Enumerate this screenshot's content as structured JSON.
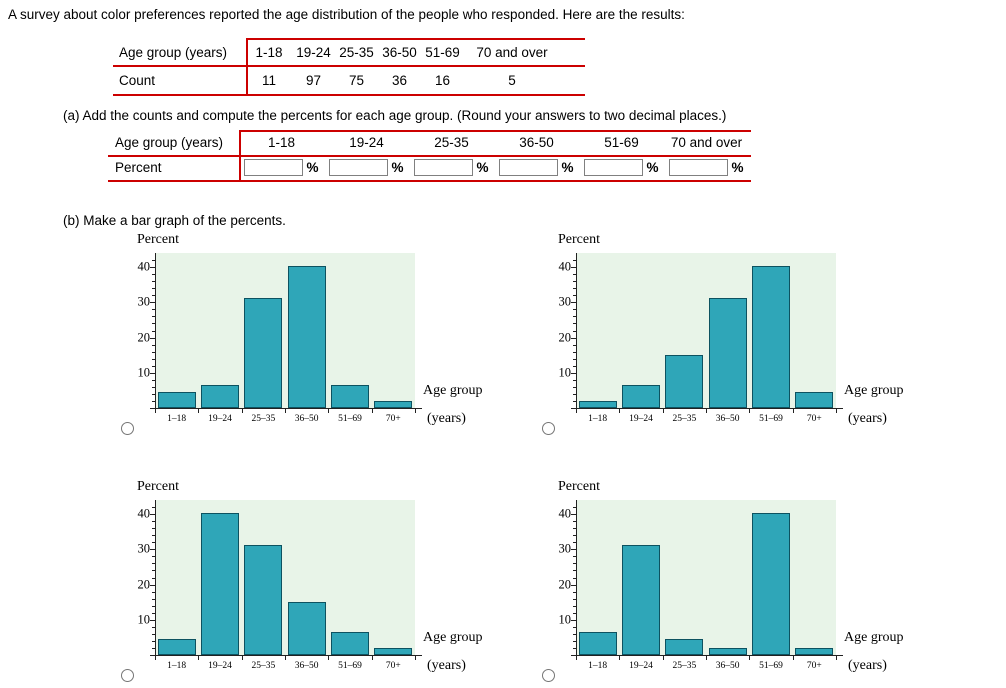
{
  "page": {
    "intro": "A survey about color preferences reported the age distribution of the people who responded. Here are the results:",
    "part_a": "(a) Add the counts and compute the percents for each age group. (Round your answers to two decimal places.)",
    "part_b": "(b) Make a bar graph of the percents."
  },
  "counts_table": {
    "row1_label": "Age group (years)",
    "row2_label": "Count",
    "age_groups": [
      "1-18",
      "19-24",
      "25-35",
      "36-50",
      "51-69",
      "70 and over"
    ],
    "counts": [
      "11",
      "97",
      "75",
      "36",
      "16",
      "5"
    ]
  },
  "percent_table": {
    "row1_label": "Age group (years)",
    "row2_label": "Percent",
    "age_groups": [
      "1-18",
      "19-24",
      "25-35",
      "36-50",
      "51-69",
      "70 and over"
    ],
    "unit": "%",
    "input_values": [
      "",
      "",
      "",
      "",
      "",
      ""
    ]
  },
  "chart_data": [
    {
      "type": "bar",
      "categories": [
        "1–18",
        "19–24",
        "25–35",
        "36–50",
        "51–69",
        "70+"
      ],
      "values": [
        4.58,
        6.67,
        31.25,
        40.42,
        6.67,
        2.08
      ],
      "title": "",
      "ylabel": "Percent",
      "xlabel": "Age group (years)",
      "xlabel_lines": [
        "Age group",
        "(years)"
      ],
      "ylim": [
        0,
        44
      ],
      "yticks": [
        10,
        20,
        30,
        40
      ]
    },
    {
      "type": "bar",
      "categories": [
        "1–18",
        "19–24",
        "25–35",
        "36–50",
        "51–69",
        "70+"
      ],
      "values": [
        2.08,
        6.67,
        15,
        31.25,
        40.42,
        4.58
      ],
      "title": "",
      "ylabel": "Percent",
      "xlabel": "Age group (years)",
      "xlabel_lines": [
        "Age group",
        "(years)"
      ],
      "ylim": [
        0,
        44
      ],
      "yticks": [
        10,
        20,
        30,
        40
      ]
    },
    {
      "type": "bar",
      "categories": [
        "1–18",
        "19–24",
        "25–35",
        "36–50",
        "51–69",
        "70+"
      ],
      "values": [
        4.58,
        40.42,
        31.25,
        15,
        6.67,
        2.08
      ],
      "title": "",
      "ylabel": "Percent",
      "xlabel": "Age group (years)",
      "xlabel_lines": [
        "Age group",
        "(years)"
      ],
      "ylim": [
        0,
        44
      ],
      "yticks": [
        10,
        20,
        30,
        40
      ]
    },
    {
      "type": "bar",
      "categories": [
        "1–18",
        "19–24",
        "25–35",
        "36–50",
        "51–69",
        "70+"
      ],
      "values": [
        6.67,
        31.25,
        4.58,
        2.08,
        40.42,
        2.08
      ],
      "title": "",
      "ylabel": "Percent",
      "xlabel": "Age group (years)",
      "xlabel_lines": [
        "Age group",
        "(years)"
      ],
      "ylim": [
        0,
        44
      ],
      "yticks": [
        10,
        20,
        30,
        40
      ]
    }
  ],
  "colors": {
    "bar_fill": "#2fa6b8",
    "bar_border": "#0d5260",
    "plot_bg": "#e8f4e8",
    "table_border": "#cc0000",
    "axis": "#222222"
  }
}
